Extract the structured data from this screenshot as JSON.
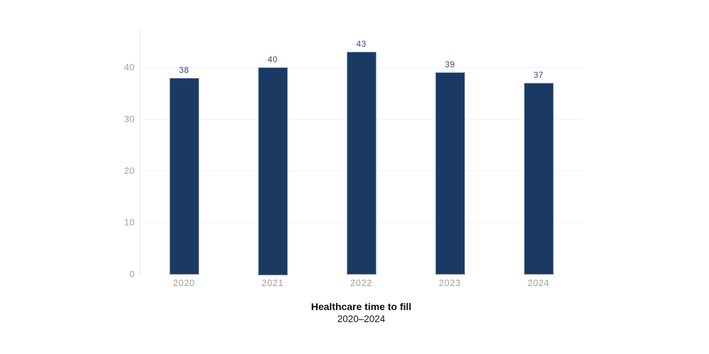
{
  "page": {
    "background_color": "#ffffff"
  },
  "chart_data": {
    "type": "bar",
    "categories": [
      "2020",
      "2021",
      "2022",
      "2023",
      "2024"
    ],
    "values": [
      38,
      40,
      43,
      39,
      37
    ],
    "title": "Healthcare time to fill",
    "subtitle": "2020–2024",
    "xlabel": "",
    "ylabel": "",
    "ylim": [
      0,
      47
    ],
    "yticks": [
      0,
      10,
      20,
      30,
      40
    ],
    "grid": true,
    "legend": "none",
    "bar_color": "#1a3a64",
    "bar_border_color": "#ffffff",
    "value_label_color": "#30507f",
    "axis_label_color": "#a1a1a1",
    "gridline_color": "#f2f2f2",
    "axis_line_color": "#e8e8e8",
    "title_color": "#0b0b0b"
  }
}
